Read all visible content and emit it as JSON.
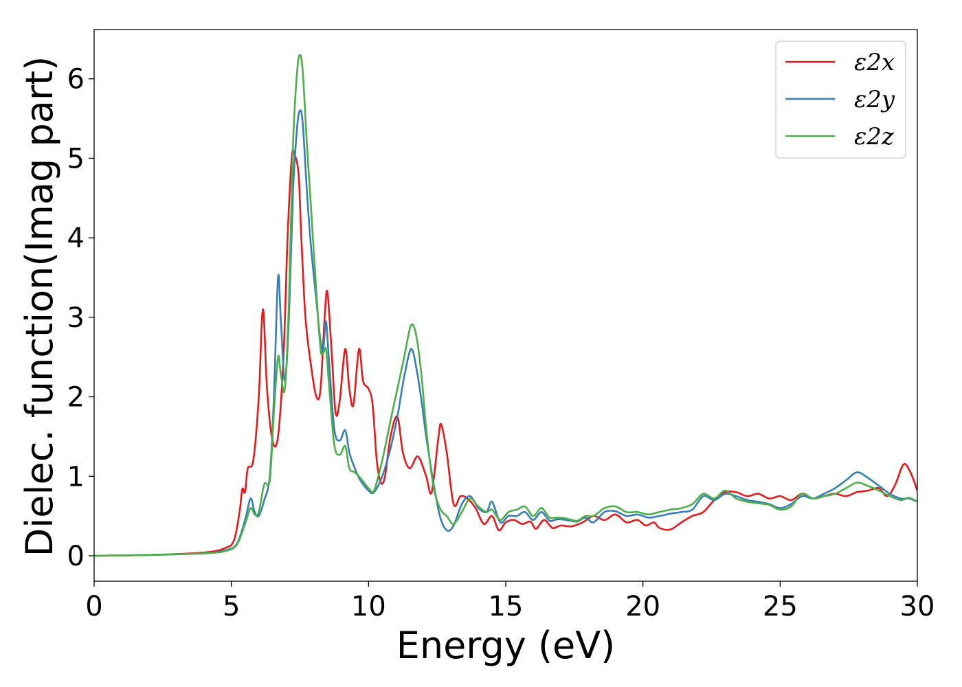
{
  "chart_data": {
    "type": "line",
    "title": "",
    "xlabel": "Energy (eV)",
    "ylabel": "Dielec. function(Imag part)",
    "xlim": [
      0,
      30
    ],
    "ylim": [
      -0.32,
      6.62
    ],
    "xticks": [
      0,
      5,
      10,
      15,
      20,
      25,
      30
    ],
    "yticks": [
      0,
      1,
      2,
      3,
      4,
      5,
      6
    ],
    "grid": false,
    "legend_position": "top-right",
    "series": [
      {
        "name": "ε2x",
        "color": "#e41a1c",
        "points": [
          [
            0,
            0.0
          ],
          [
            2,
            0.01
          ],
          [
            4,
            0.04
          ],
          [
            4.8,
            0.1
          ],
          [
            5.1,
            0.2
          ],
          [
            5.3,
            0.55
          ],
          [
            5.4,
            0.84
          ],
          [
            5.5,
            0.8
          ],
          [
            5.6,
            1.1
          ],
          [
            5.8,
            1.2
          ],
          [
            6.0,
            2.0
          ],
          [
            6.15,
            3.1
          ],
          [
            6.3,
            2.1
          ],
          [
            6.5,
            1.45
          ],
          [
            6.7,
            1.5
          ],
          [
            6.9,
            2.5
          ],
          [
            7.05,
            4.0
          ],
          [
            7.2,
            5.0
          ],
          [
            7.3,
            5.05
          ],
          [
            7.45,
            4.8
          ],
          [
            7.55,
            4.0
          ],
          [
            7.7,
            3.0
          ],
          [
            7.9,
            2.4
          ],
          [
            8.1,
            2.0
          ],
          [
            8.25,
            2.1
          ],
          [
            8.4,
            3.0
          ],
          [
            8.5,
            3.32
          ],
          [
            8.65,
            2.6
          ],
          [
            8.8,
            1.8
          ],
          [
            8.95,
            1.95
          ],
          [
            9.15,
            2.6
          ],
          [
            9.3,
            2.1
          ],
          [
            9.45,
            1.9
          ],
          [
            9.65,
            2.6
          ],
          [
            9.8,
            2.2
          ],
          [
            10.0,
            2.1
          ],
          [
            10.15,
            1.9
          ],
          [
            10.3,
            1.2
          ],
          [
            10.45,
            0.92
          ],
          [
            10.6,
            1.0
          ],
          [
            10.8,
            1.5
          ],
          [
            11.05,
            1.75
          ],
          [
            11.25,
            1.3
          ],
          [
            11.5,
            1.1
          ],
          [
            11.8,
            1.25
          ],
          [
            12.1,
            1.0
          ],
          [
            12.3,
            0.8
          ],
          [
            12.55,
            1.5
          ],
          [
            12.65,
            1.65
          ],
          [
            12.85,
            1.3
          ],
          [
            13.1,
            0.65
          ],
          [
            13.35,
            0.75
          ],
          [
            13.6,
            0.72
          ],
          [
            13.9,
            0.6
          ],
          [
            14.2,
            0.4
          ],
          [
            14.5,
            0.5
          ],
          [
            14.75,
            0.32
          ],
          [
            15.0,
            0.42
          ],
          [
            15.3,
            0.45
          ],
          [
            15.6,
            0.4
          ],
          [
            15.9,
            0.43
          ],
          [
            16.1,
            0.34
          ],
          [
            16.4,
            0.45
          ],
          [
            16.7,
            0.35
          ],
          [
            17.0,
            0.38
          ],
          [
            17.4,
            0.37
          ],
          [
            17.8,
            0.42
          ],
          [
            18.2,
            0.5
          ],
          [
            18.6,
            0.45
          ],
          [
            19.0,
            0.52
          ],
          [
            19.4,
            0.42
          ],
          [
            19.8,
            0.45
          ],
          [
            20.1,
            0.38
          ],
          [
            20.4,
            0.42
          ],
          [
            20.6,
            0.35
          ],
          [
            21.0,
            0.33
          ],
          [
            21.4,
            0.42
          ],
          [
            21.8,
            0.5
          ],
          [
            22.2,
            0.55
          ],
          [
            22.6,
            0.7
          ],
          [
            23.0,
            0.8
          ],
          [
            23.4,
            0.8
          ],
          [
            23.8,
            0.75
          ],
          [
            24.2,
            0.78
          ],
          [
            24.6,
            0.72
          ],
          [
            25.0,
            0.75
          ],
          [
            25.4,
            0.7
          ],
          [
            25.8,
            0.78
          ],
          [
            26.2,
            0.72
          ],
          [
            26.6,
            0.75
          ],
          [
            27.0,
            0.78
          ],
          [
            27.4,
            0.75
          ],
          [
            27.8,
            0.8
          ],
          [
            28.2,
            0.82
          ],
          [
            28.6,
            0.85
          ],
          [
            28.9,
            0.75
          ],
          [
            29.2,
            0.9
          ],
          [
            29.5,
            1.15
          ],
          [
            29.75,
            1.05
          ],
          [
            30,
            0.82
          ]
        ]
      },
      {
        "name": "ε2y",
        "color": "#377eb8",
        "points": [
          [
            0,
            0.0
          ],
          [
            2,
            0.01
          ],
          [
            4,
            0.03
          ],
          [
            4.8,
            0.07
          ],
          [
            5.2,
            0.15
          ],
          [
            5.5,
            0.45
          ],
          [
            5.7,
            0.72
          ],
          [
            5.85,
            0.55
          ],
          [
            6.0,
            0.5
          ],
          [
            6.2,
            0.7
          ],
          [
            6.4,
            1.0
          ],
          [
            6.55,
            2.0
          ],
          [
            6.7,
            3.5
          ],
          [
            6.8,
            3.0
          ],
          [
            6.95,
            2.2
          ],
          [
            7.1,
            3.0
          ],
          [
            7.25,
            4.6
          ],
          [
            7.4,
            5.4
          ],
          [
            7.5,
            5.6
          ],
          [
            7.6,
            5.45
          ],
          [
            7.75,
            4.6
          ],
          [
            7.9,
            3.9
          ],
          [
            8.1,
            3.2
          ],
          [
            8.25,
            2.7
          ],
          [
            8.35,
            2.6
          ],
          [
            8.45,
            2.95
          ],
          [
            8.55,
            2.5
          ],
          [
            8.75,
            1.6
          ],
          [
            8.95,
            1.45
          ],
          [
            9.15,
            1.58
          ],
          [
            9.3,
            1.3
          ],
          [
            9.5,
            1.1
          ],
          [
            9.7,
            0.95
          ],
          [
            10.0,
            0.82
          ],
          [
            10.2,
            0.8
          ],
          [
            10.5,
            1.0
          ],
          [
            10.8,
            1.35
          ],
          [
            11.05,
            1.75
          ],
          [
            11.3,
            2.25
          ],
          [
            11.55,
            2.6
          ],
          [
            11.75,
            2.35
          ],
          [
            11.95,
            1.9
          ],
          [
            12.1,
            1.5
          ],
          [
            12.35,
            0.95
          ],
          [
            12.6,
            0.5
          ],
          [
            12.85,
            0.32
          ],
          [
            13.1,
            0.38
          ],
          [
            13.4,
            0.65
          ],
          [
            13.7,
            0.75
          ],
          [
            14.0,
            0.6
          ],
          [
            14.3,
            0.55
          ],
          [
            14.5,
            0.68
          ],
          [
            14.8,
            0.42
          ],
          [
            15.1,
            0.5
          ],
          [
            15.4,
            0.5
          ],
          [
            15.7,
            0.55
          ],
          [
            16.0,
            0.45
          ],
          [
            16.3,
            0.55
          ],
          [
            16.6,
            0.44
          ],
          [
            16.9,
            0.46
          ],
          [
            17.2,
            0.45
          ],
          [
            17.6,
            0.43
          ],
          [
            17.9,
            0.48
          ],
          [
            18.2,
            0.42
          ],
          [
            18.6,
            0.55
          ],
          [
            19.0,
            0.56
          ],
          [
            19.4,
            0.5
          ],
          [
            19.8,
            0.52
          ],
          [
            20.2,
            0.48
          ],
          [
            20.6,
            0.5
          ],
          [
            21.0,
            0.53
          ],
          [
            21.4,
            0.55
          ],
          [
            21.8,
            0.58
          ],
          [
            22.2,
            0.75
          ],
          [
            22.6,
            0.7
          ],
          [
            23.0,
            0.78
          ],
          [
            23.4,
            0.75
          ],
          [
            23.8,
            0.7
          ],
          [
            24.2,
            0.68
          ],
          [
            24.6,
            0.65
          ],
          [
            25.0,
            0.6
          ],
          [
            25.4,
            0.65
          ],
          [
            25.8,
            0.75
          ],
          [
            26.2,
            0.72
          ],
          [
            26.6,
            0.78
          ],
          [
            27.0,
            0.85
          ],
          [
            27.4,
            0.95
          ],
          [
            27.8,
            1.05
          ],
          [
            28.2,
            0.98
          ],
          [
            28.6,
            0.88
          ],
          [
            29.0,
            0.78
          ],
          [
            29.4,
            0.72
          ],
          [
            29.7,
            0.72
          ],
          [
            30,
            0.68
          ]
        ]
      },
      {
        "name": "ε2z",
        "color": "#4daf4a",
        "points": [
          [
            0,
            0.0
          ],
          [
            2,
            0.01
          ],
          [
            4,
            0.03
          ],
          [
            4.8,
            0.06
          ],
          [
            5.2,
            0.14
          ],
          [
            5.5,
            0.4
          ],
          [
            5.7,
            0.6
          ],
          [
            5.85,
            0.52
          ],
          [
            6.0,
            0.55
          ],
          [
            6.2,
            0.9
          ],
          [
            6.4,
            0.95
          ],
          [
            6.55,
            1.8
          ],
          [
            6.7,
            2.5
          ],
          [
            6.8,
            2.3
          ],
          [
            6.95,
            2.1
          ],
          [
            7.1,
            3.2
          ],
          [
            7.25,
            5.2
          ],
          [
            7.4,
            6.1
          ],
          [
            7.5,
            6.3
          ],
          [
            7.6,
            6.1
          ],
          [
            7.75,
            5.2
          ],
          [
            7.9,
            4.4
          ],
          [
            8.1,
            3.3
          ],
          [
            8.25,
            2.6
          ],
          [
            8.35,
            2.55
          ],
          [
            8.45,
            2.6
          ],
          [
            8.55,
            2.2
          ],
          [
            8.75,
            1.4
          ],
          [
            8.95,
            1.27
          ],
          [
            9.15,
            1.38
          ],
          [
            9.3,
            1.1
          ],
          [
            9.5,
            1.05
          ],
          [
            9.7,
            0.98
          ],
          [
            10.0,
            0.85
          ],
          [
            10.2,
            0.82
          ],
          [
            10.5,
            1.2
          ],
          [
            10.8,
            1.7
          ],
          [
            11.05,
            2.1
          ],
          [
            11.3,
            2.5
          ],
          [
            11.55,
            2.9
          ],
          [
            11.75,
            2.75
          ],
          [
            11.95,
            2.2
          ],
          [
            12.1,
            1.6
          ],
          [
            12.35,
            0.9
          ],
          [
            12.6,
            0.6
          ],
          [
            12.85,
            0.5
          ],
          [
            13.1,
            0.4
          ],
          [
            13.4,
            0.55
          ],
          [
            13.7,
            0.72
          ],
          [
            14.0,
            0.62
          ],
          [
            14.3,
            0.55
          ],
          [
            14.5,
            0.58
          ],
          [
            14.8,
            0.45
          ],
          [
            15.1,
            0.55
          ],
          [
            15.4,
            0.58
          ],
          [
            15.7,
            0.62
          ],
          [
            16.0,
            0.5
          ],
          [
            16.3,
            0.6
          ],
          [
            16.6,
            0.48
          ],
          [
            16.9,
            0.48
          ],
          [
            17.2,
            0.47
          ],
          [
            17.6,
            0.44
          ],
          [
            17.9,
            0.5
          ],
          [
            18.2,
            0.5
          ],
          [
            18.6,
            0.6
          ],
          [
            19.0,
            0.62
          ],
          [
            19.4,
            0.55
          ],
          [
            19.8,
            0.55
          ],
          [
            20.2,
            0.52
          ],
          [
            20.6,
            0.55
          ],
          [
            21.0,
            0.58
          ],
          [
            21.4,
            0.6
          ],
          [
            21.8,
            0.65
          ],
          [
            22.2,
            0.78
          ],
          [
            22.6,
            0.72
          ],
          [
            23.0,
            0.82
          ],
          [
            23.4,
            0.72
          ],
          [
            23.8,
            0.68
          ],
          [
            24.2,
            0.66
          ],
          [
            24.6,
            0.64
          ],
          [
            25.0,
            0.58
          ],
          [
            25.4,
            0.62
          ],
          [
            25.8,
            0.78
          ],
          [
            26.2,
            0.72
          ],
          [
            26.6,
            0.75
          ],
          [
            27.0,
            0.78
          ],
          [
            27.4,
            0.85
          ],
          [
            27.8,
            0.92
          ],
          [
            28.2,
            0.88
          ],
          [
            28.6,
            0.82
          ],
          [
            29.0,
            0.75
          ],
          [
            29.4,
            0.7
          ],
          [
            29.7,
            0.73
          ],
          [
            30,
            0.68
          ]
        ]
      }
    ]
  }
}
